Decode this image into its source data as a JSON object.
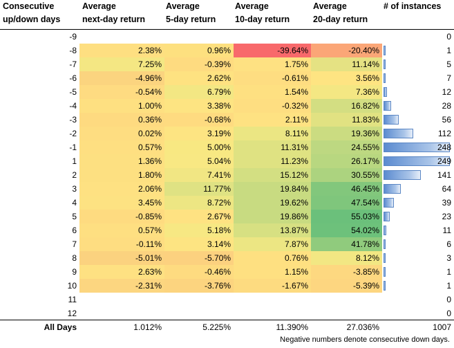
{
  "headers": {
    "days": [
      "Consecutive",
      "up/down days"
    ],
    "next_day": [
      "Average",
      "next-day return"
    ],
    "five_day": [
      "Average",
      "5-day return"
    ],
    "ten_day": [
      "Average",
      "10-day return"
    ],
    "twenty_day": [
      "Average",
      "20-day return"
    ],
    "instances": [
      "",
      "# of instances"
    ]
  },
  "rows": [
    {
      "days": "-9",
      "r1": "",
      "r5": "",
      "r10": "",
      "r20": "",
      "n": "0",
      "bar": 0,
      "colors": [
        "",
        "",
        "",
        ""
      ]
    },
    {
      "days": "-8",
      "r1": "2.38%",
      "r5": "0.96%",
      "r10": "-39.64%",
      "r20": "-20.40%",
      "n": "1",
      "bar": 1,
      "colors": [
        "#fedf81",
        "#fde07f",
        "#f8696b",
        "#fba677"
      ]
    },
    {
      "days": "-7",
      "r1": "7.25%",
      "r5": "-0.39%",
      "r10": "1.75%",
      "r20": "11.14%",
      "n": "5",
      "bar": 5,
      "colors": [
        "#f4e783",
        "#fedb80",
        "#fee182",
        "#e5e283"
      ]
    },
    {
      "days": "-6",
      "r1": "-4.96%",
      "r5": "2.62%",
      "r10": "-0.61%",
      "r20": "3.56%",
      "n": "7",
      "bar": 7,
      "colors": [
        "#fbd47f",
        "#fee281",
        "#fedd81",
        "#fee482"
      ]
    },
    {
      "days": "-5",
      "r1": "-0.54%",
      "r5": "6.79%",
      "r10": "1.54%",
      "r20": "7.36%",
      "n": "12",
      "bar": 12,
      "colors": [
        "#fedb81",
        "#f3e783",
        "#fee081",
        "#f4e783"
      ]
    },
    {
      "days": "-4",
      "r1": "1.00%",
      "r5": "3.38%",
      "r10": "-0.32%",
      "r20": "16.82%",
      "n": "28",
      "bar": 28,
      "colors": [
        "#fee081",
        "#fde482",
        "#fede81",
        "#d3de82"
      ]
    },
    {
      "days": "-3",
      "r1": "0.36%",
      "r5": "-0.68%",
      "r10": "2.11%",
      "r20": "11.83%",
      "n": "56",
      "bar": 56,
      "colors": [
        "#feda80",
        "#fedb80",
        "#fee282",
        "#e1e282"
      ]
    },
    {
      "days": "-2",
      "r1": "0.02%",
      "r5": "3.19%",
      "r10": "8.11%",
      "r20": "19.36%",
      "n": "112",
      "bar": 112,
      "colors": [
        "#fedd81",
        "#fde482",
        "#ebe683",
        "#cbdc81"
      ]
    },
    {
      "days": "-1",
      "r1": "0.57%",
      "r5": "5.00%",
      "r10": "11.31%",
      "r20": "24.55%",
      "n": "248",
      "bar": 248,
      "colors": [
        "#fedf81",
        "#f8e882",
        "#dfe282",
        "#bdd881"
      ]
    },
    {
      "days": "1",
      "r1": "1.36%",
      "r5": "5.04%",
      "r10": "11.23%",
      "r20": "26.17%",
      "n": "249",
      "bar": 249,
      "colors": [
        "#fde081",
        "#f8e883",
        "#dfe282",
        "#b8d780"
      ]
    },
    {
      "days": "2",
      "r1": "1.80%",
      "r5": "7.41%",
      "r10": "15.12%",
      "r20": "30.55%",
      "n": "141",
      "bar": 141,
      "colors": [
        "#fde081",
        "#f1e683",
        "#d3df82",
        "#acd37f"
      ]
    },
    {
      "days": "3",
      "r1": "2.06%",
      "r5": "11.77%",
      "r10": "19.84%",
      "r20": "46.45%",
      "n": "64",
      "bar": 64,
      "colors": [
        "#fee182",
        "#dfe283",
        "#c8db81",
        "#82c77c"
      ]
    },
    {
      "days": "4",
      "r1": "3.45%",
      "r5": "8.72%",
      "r10": "19.62%",
      "r20": "47.54%",
      "n": "39",
      "bar": 39,
      "colors": [
        "#fde282",
        "#ede683",
        "#c8db81",
        "#7fc67c"
      ]
    },
    {
      "days": "5",
      "r1": "-0.85%",
      "r5": "2.67%",
      "r10": "19.86%",
      "r20": "55.03%",
      "n": "23",
      "bar": 23,
      "colors": [
        "#fedb80",
        "#fee282",
        "#c8db81",
        "#6bc07b"
      ]
    },
    {
      "days": "6",
      "r1": "0.57%",
      "r5": "5.18%",
      "r10": "13.87%",
      "r20": "54.02%",
      "n": "11",
      "bar": 11,
      "colors": [
        "#fedf81",
        "#f7e883",
        "#d7e082",
        "#6dc17b"
      ]
    },
    {
      "days": "7",
      "r1": "-0.11%",
      "r5": "3.14%",
      "r10": "7.87%",
      "r20": "41.78%",
      "n": "6",
      "bar": 6,
      "colors": [
        "#fedd81",
        "#fde482",
        "#ece683",
        "#90cb7d"
      ]
    },
    {
      "days": "8",
      "r1": "-5.01%",
      "r5": "-5.70%",
      "r10": "0.76%",
      "r20": "8.12%",
      "n": "3",
      "bar": 3,
      "colors": [
        "#fbd27f",
        "#fcd17f",
        "#fee081",
        "#f2e783"
      ]
    },
    {
      "days": "9",
      "r1": "2.63%",
      "r5": "-0.46%",
      "r10": "1.15%",
      "r20": "-3.85%",
      "n": "1",
      "bar": 1,
      "colors": [
        "#fee182",
        "#fedb80",
        "#fee081",
        "#fdd880"
      ]
    },
    {
      "days": "10",
      "r1": "-2.31%",
      "r5": "-3.76%",
      "r10": "-1.67%",
      "r20": "-5.39%",
      "n": "1",
      "bar": 1,
      "colors": [
        "#fcd680",
        "#fcd47f",
        "#fddb80",
        "#fdd680"
      ]
    },
    {
      "days": "11",
      "r1": "",
      "r5": "",
      "r10": "",
      "r20": "",
      "n": "0",
      "bar": 0,
      "colors": [
        "",
        "",
        "",
        ""
      ]
    },
    {
      "days": "12",
      "r1": "",
      "r5": "",
      "r10": "",
      "r20": "",
      "n": "0",
      "bar": 0,
      "colors": [
        "",
        "",
        "",
        ""
      ]
    }
  ],
  "totals": {
    "label": "All Days",
    "r1": "1.012%",
    "r5": "5.225%",
    "r10": "11.390%",
    "r20": "27.036%",
    "n": "1007"
  },
  "footnote": "Negative numbers denote consecutive down days."
}
